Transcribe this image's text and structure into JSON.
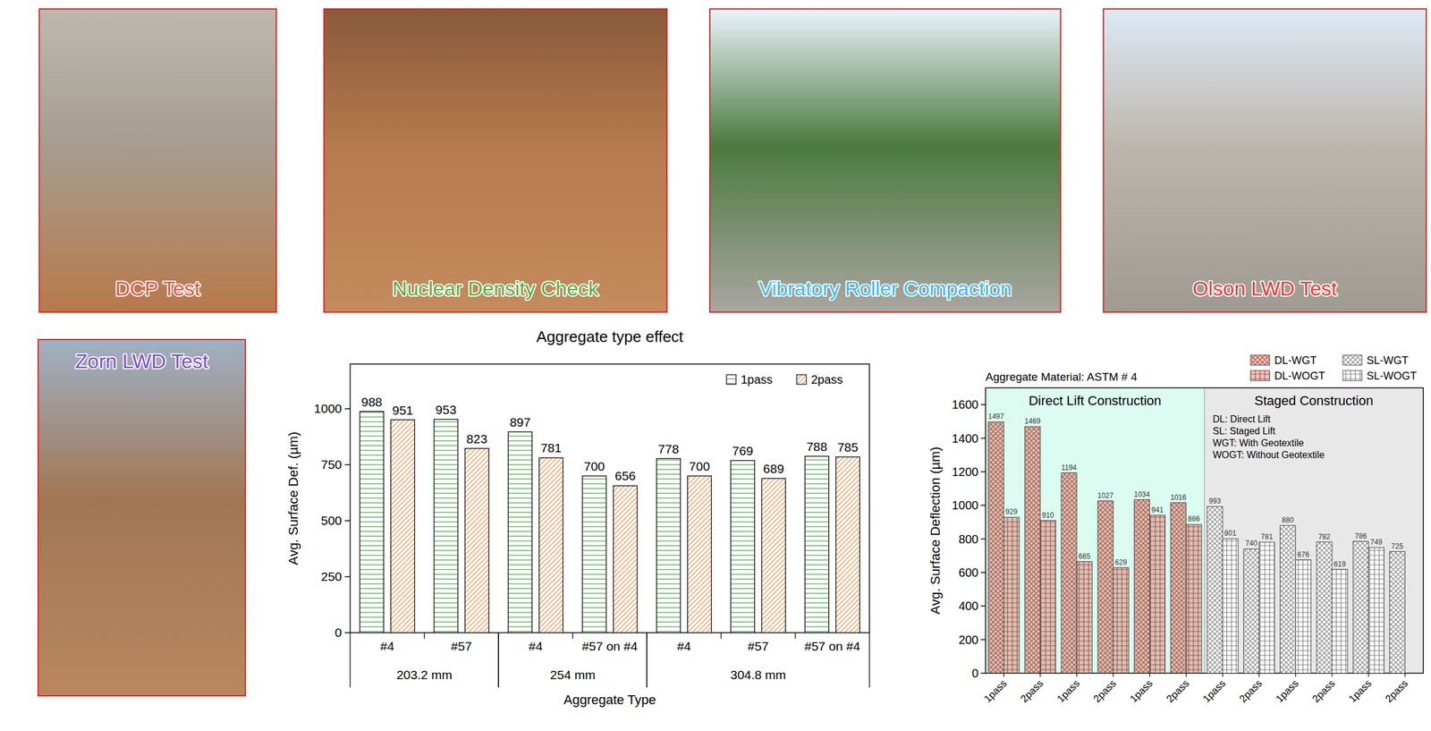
{
  "photos": [
    {
      "caption": "DCP Test"
    },
    {
      "caption": "Nuclear Density Check"
    },
    {
      "caption": "Vibratory Roller Compaction"
    },
    {
      "caption": "Olson LWD Test"
    },
    {
      "caption": "Zorn LWD Test"
    }
  ],
  "chart_data": [
    {
      "type": "bar",
      "title": "Aggregate type effect",
      "categories": [
        "#4",
        "#57",
        "#4",
        "#57 on #4",
        "#4",
        "#57",
        "#57 on #4"
      ],
      "groups": [
        "203.2 mm",
        "203.2 mm",
        "254 mm",
        "254 mm",
        "304.8 mm",
        "304.8 mm",
        "304.8 mm"
      ],
      "x_label": "Aggregate Type",
      "y_label": "Avg. Surface Def. (µm)",
      "series": [
        {
          "name": "1pass",
          "color": "#3a9a3a",
          "values": [
            988,
            953,
            897,
            700,
            778,
            769,
            788
          ]
        },
        {
          "name": "2pass",
          "color": "#f07f2a",
          "values": [
            951,
            823,
            781,
            656,
            700,
            689,
            785
          ]
        }
      ],
      "ylim": [
        0,
        1200
      ],
      "yticks": [
        0,
        250,
        500,
        750,
        1000
      ],
      "legend": "upper right",
      "data_labels": true
    },
    {
      "type": "bar",
      "subtitle": "Aggregate Material: ASTM # 4",
      "categories": [
        "1pass",
        "2pass",
        "1pass",
        "2pass",
        "1pass",
        "2pass",
        "1pass",
        "2pass",
        "1pass",
        "2pass",
        "1pass",
        "2pass"
      ],
      "sections": [
        "Direct Lift Construction",
        "Direct Lift Construction",
        "Direct Lift Construction",
        "Direct Lift Construction",
        "Direct Lift Construction",
        "Direct Lift Construction",
        "Staged Construction",
        "Staged Construction",
        "Staged Construction",
        "Staged Construction",
        "Staged Construction",
        "Staged Construction"
      ],
      "notes": [
        "DL: Direct Lift",
        "SL: Staged Lift",
        "WGT: With Geotextile",
        "WOGT: Without Geotextile"
      ],
      "y_label": "Avg. Surface Deflection (µm)",
      "series": [
        {
          "name": "DL-WGT",
          "color": "#b5473a",
          "values": [
            1497,
            1469,
            1194,
            1027,
            1034,
            1016,
            null,
            null,
            null,
            null,
            null,
            null
          ]
        },
        {
          "name": "DL-WOGT",
          "color": "#b5473a",
          "values": [
            929,
            910,
            665,
            629,
            941,
            886,
            null,
            null,
            null,
            null,
            null,
            null
          ]
        },
        {
          "name": "SL-WGT",
          "color": "#7f7f7f",
          "values": [
            null,
            null,
            null,
            null,
            null,
            null,
            993,
            740,
            880,
            782,
            786,
            725
          ]
        },
        {
          "name": "SL-WOGT",
          "color": "#7f7f7f",
          "values": [
            null,
            null,
            null,
            null,
            null,
            null,
            801,
            781,
            676,
            619,
            749,
            null
          ]
        }
      ],
      "ylim": [
        0,
        1700
      ],
      "yticks": [
        0,
        200,
        400,
        600,
        800,
        1000,
        1200,
        1400,
        1600
      ],
      "legend": "upper right",
      "data_labels": true
    }
  ]
}
